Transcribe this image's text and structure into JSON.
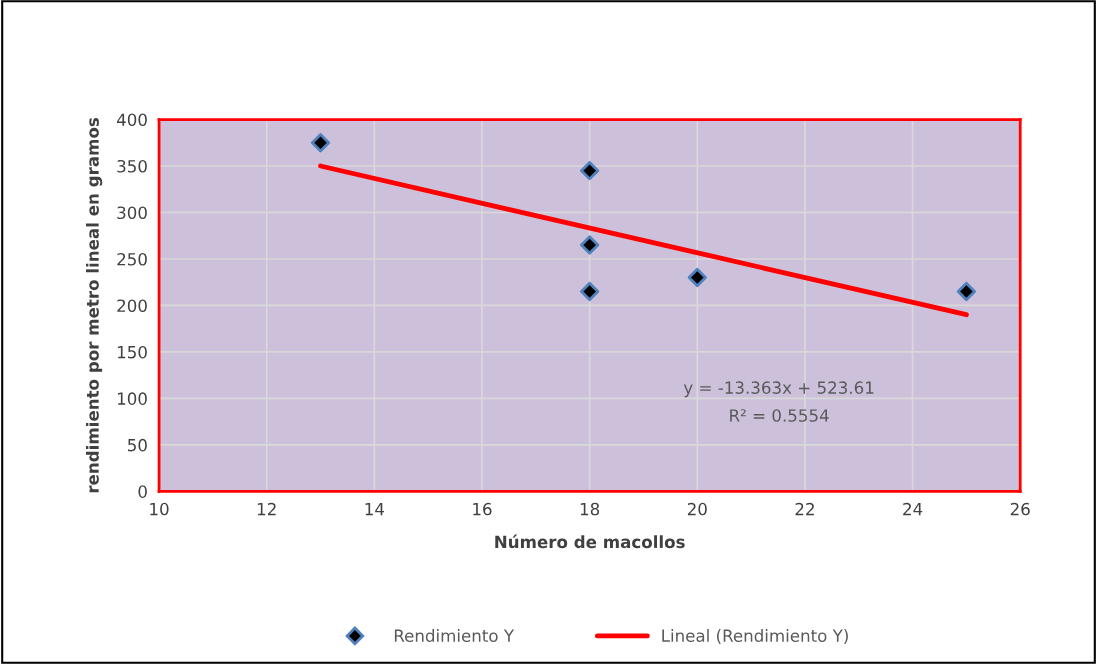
{
  "chart_data": {
    "type": "scatter",
    "xlabel": "Número de macollos",
    "ylabel": "rendimiento por metro lineal en gramos",
    "xlim": [
      10,
      26
    ],
    "xticks": [
      10,
      12,
      14,
      16,
      18,
      20,
      22,
      24,
      26
    ],
    "ylim": [
      0,
      400
    ],
    "yticks": [
      0,
      50,
      100,
      150,
      200,
      250,
      300,
      350,
      400
    ],
    "grid": true,
    "legend": "bottom",
    "marker": "diamond",
    "series": [
      {
        "name": "Rendimiento Y",
        "color": "#000000",
        "x": [
          13,
          18,
          18,
          18,
          20,
          25
        ],
        "values": [
          375,
          345,
          265,
          215,
          230,
          215
        ]
      },
      {
        "name": "Lineal (Rendimiento Y)",
        "type": "line",
        "color": "#ff0000",
        "line_style": "solid",
        "marker": "none",
        "x": [
          13,
          25
        ],
        "values": [
          350,
          190
        ]
      }
    ],
    "annotations": [
      "y = -13.363x + 523.61",
      "R² = 0.5554"
    ]
  }
}
